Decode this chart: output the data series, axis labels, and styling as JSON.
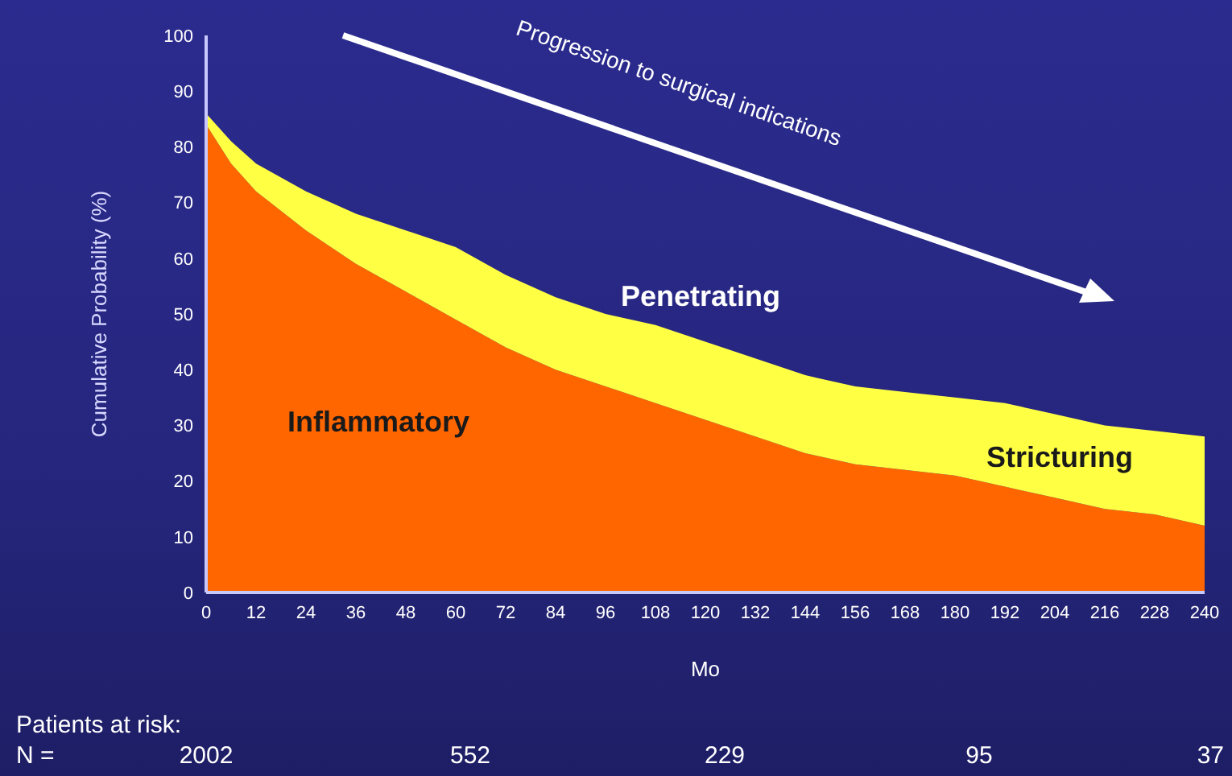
{
  "chart_data": {
    "type": "area",
    "stacked": true,
    "xlabel": "Mo",
    "ylabel": "Cumulative Probability (%)",
    "x": [
      0,
      6,
      12,
      24,
      36,
      48,
      60,
      72,
      84,
      96,
      108,
      120,
      132,
      144,
      156,
      168,
      180,
      192,
      204,
      216,
      228,
      240
    ],
    "series": [
      {
        "color": "#ff6600",
        "values": [
          84,
          77,
          72,
          65,
          59,
          54,
          49,
          44,
          40,
          37,
          34,
          31,
          28,
          25,
          23,
          22,
          21,
          19,
          17,
          15,
          14,
          12
        ]
      },
      {
        "color": "#ffff44",
        "values": [
          2,
          4,
          5,
          7,
          9,
          11,
          13,
          13,
          13,
          13,
          14,
          14,
          14,
          14,
          14,
          14,
          14,
          15,
          15,
          15,
          15,
          16
        ]
      }
    ],
    "xlim": [
      0,
      240
    ],
    "xticks": [
      0,
      12,
      24,
      36,
      48,
      60,
      72,
      84,
      96,
      108,
      120,
      132,
      144,
      156,
      168,
      180,
      192,
      204,
      216,
      228,
      240
    ],
    "ylim": [
      0,
      100
    ],
    "yticks": [
      0,
      10,
      20,
      30,
      40,
      50,
      60,
      70,
      80,
      90,
      100
    ],
    "annotations": [
      "Progression to surgical indications",
      "Patients at risk:",
      "N =",
      "Inflammatory",
      "Penetrating",
      "Stricturing",
      "2002",
      "552",
      "229",
      "95",
      "37"
    ]
  }
}
